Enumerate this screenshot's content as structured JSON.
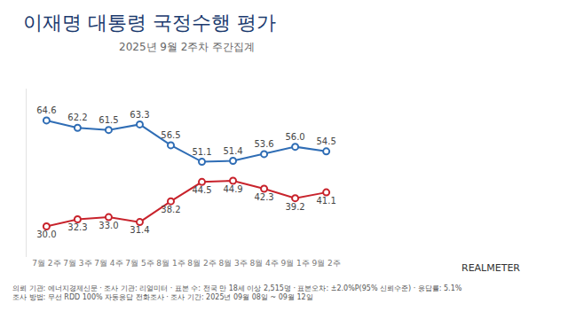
{
  "chart_data": {
    "type": "line",
    "title": "이재명 대통령 국정수행 평가",
    "subtitle": "2025년 9월 2주차 주간집계",
    "categories": [
      "7월 2주",
      "7월 3주",
      "7월 4주",
      "7월 5주",
      "8월 1주",
      "8월 2주",
      "8월 3주",
      "8월 4주",
      "9월 1주",
      "9월 2주"
    ],
    "series": [
      {
        "color": "#2f6db5",
        "values": [
          64.6,
          62.2,
          61.5,
          63.3,
          56.5,
          51.1,
          51.4,
          53.6,
          56.0,
          54.5
        ],
        "value_labels": [
          "64.6",
          "62.2",
          "61.5",
          "63.3",
          "56.5",
          "51.1",
          "51.4",
          "53.6",
          "56.0",
          "54.5"
        ]
      },
      {
        "color": "#c8232c",
        "values": [
          30.0,
          32.3,
          33.0,
          31.4,
          38.2,
          44.5,
          44.9,
          42.3,
          39.2,
          41.1
        ],
        "value_labels": [
          "30.0",
          "32.3",
          "33.0",
          "31.4",
          "38.2",
          "44.5",
          "44.9",
          "42.3",
          "39.2",
          "41.1"
        ]
      }
    ],
    "ylim": [
      20,
      75
    ],
    "yticks": [],
    "tick_labels": "x",
    "data_labels": true,
    "grid": false,
    "marker": "circle",
    "annotations": [
      "의뢰 기관: 에너지경제신문 · 조사 기관: 리얼미터 · 표본 수: 전국 만 18세 이상 2,515명 · 표본오차: ±2.0%P(95% 신뢰수준) · 응답률: 5.1%",
      "조사 방법: 무선 RDD 100% 자동응답 전화조사 · 조사 기간: 2025년 09월 08일 ~ 09월 12일",
      "REALMETER"
    ]
  }
}
